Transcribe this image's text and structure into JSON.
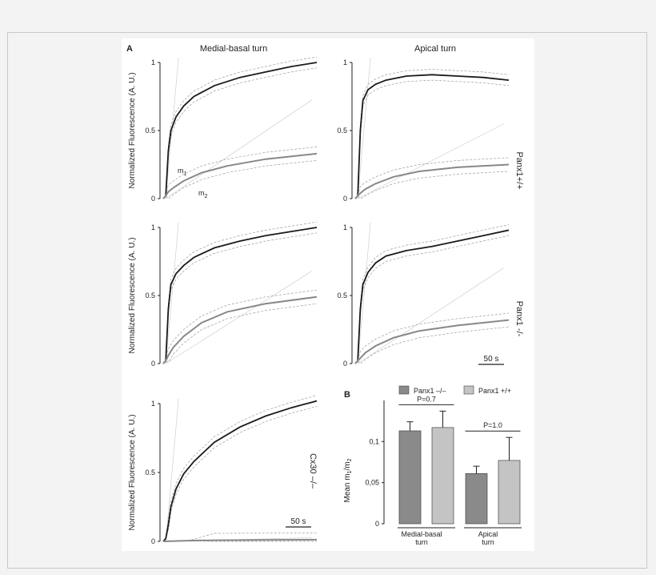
{
  "figure": {
    "panel_a_letter": "A",
    "panel_b_letter": "B",
    "col1_title": "Medial-basal turn",
    "col2_title": "Apical turn",
    "ylabel": "Normalized Fluorescence (A. U.)",
    "m1_label": "m",
    "m1_sub": "1",
    "m2_label": "m",
    "m2_sub": "2",
    "scalebar_label": "50 s",
    "row_labels": [
      "Panx1+/+",
      "Panx1 -/-",
      "Cx30 –/–"
    ]
  },
  "chart_data": [
    {
      "type": "line",
      "panel": "A",
      "title": "Medial-basal turn",
      "row": "Panx1+/+",
      "ylabel": "Normalized Fluorescence (A. U.)",
      "ylim": [
        0,
        1
      ],
      "yticks": [
        "0",
        "0.5",
        "1"
      ],
      "series": [
        {
          "name": "m1",
          "x": [
            0,
            1,
            2,
            3,
            5,
            8,
            12,
            20,
            30,
            40,
            50,
            60
          ],
          "values": [
            0,
            0.02,
            0.35,
            0.5,
            0.6,
            0.68,
            0.75,
            0.83,
            0.89,
            0.93,
            0.97,
            1.0
          ]
        },
        {
          "name": "m2",
          "x": [
            0,
            1,
            2,
            4,
            8,
            15,
            25,
            40,
            60
          ],
          "values": [
            0,
            0.02,
            0.05,
            0.08,
            0.13,
            0.19,
            0.24,
            0.29,
            0.33
          ]
        }
      ]
    },
    {
      "type": "line",
      "panel": "A",
      "title": "Apical turn",
      "row": "Panx1+/+",
      "ylim": [
        0,
        1
      ],
      "yticks": [
        "0",
        "0.5",
        "1"
      ],
      "series": [
        {
          "name": "m1",
          "x": [
            0,
            1,
            2,
            3,
            5,
            8,
            12,
            20,
            30,
            40,
            50,
            60
          ],
          "values": [
            0,
            0.02,
            0.5,
            0.72,
            0.8,
            0.84,
            0.87,
            0.9,
            0.91,
            0.9,
            0.89,
            0.87
          ]
        },
        {
          "name": "m2",
          "x": [
            0,
            1,
            2,
            4,
            8,
            15,
            25,
            40,
            60
          ],
          "values": [
            0,
            0.02,
            0.04,
            0.07,
            0.11,
            0.16,
            0.2,
            0.23,
            0.25
          ]
        }
      ]
    },
    {
      "type": "line",
      "panel": "A",
      "title": "Medial-basal turn",
      "row": "Panx1 -/-",
      "ylim": [
        0,
        1
      ],
      "yticks": [
        "0",
        "0.5",
        "1"
      ],
      "series": [
        {
          "name": "m1",
          "x": [
            0,
            1,
            2,
            3,
            5,
            8,
            12,
            20,
            30,
            40,
            50,
            60
          ],
          "values": [
            0,
            0.02,
            0.4,
            0.58,
            0.66,
            0.72,
            0.78,
            0.85,
            0.9,
            0.94,
            0.97,
            1.0
          ]
        },
        {
          "name": "m2",
          "x": [
            0,
            1,
            2,
            4,
            8,
            15,
            25,
            40,
            60
          ],
          "values": [
            0,
            0.02,
            0.06,
            0.12,
            0.2,
            0.3,
            0.38,
            0.44,
            0.49
          ]
        }
      ]
    },
    {
      "type": "line",
      "panel": "A",
      "title": "Apical turn",
      "row": "Panx1 -/-",
      "ylim": [
        0,
        1
      ],
      "yticks": [
        "0",
        "0.5",
        "1"
      ],
      "series": [
        {
          "name": "m1",
          "x": [
            0,
            1,
            2,
            3,
            5,
            8,
            12,
            20,
            30,
            40,
            50,
            60
          ],
          "values": [
            0,
            0.02,
            0.4,
            0.58,
            0.67,
            0.74,
            0.79,
            0.83,
            0.86,
            0.9,
            0.94,
            0.98
          ]
        },
        {
          "name": "m2",
          "x": [
            0,
            1,
            2,
            4,
            8,
            15,
            25,
            40,
            60
          ],
          "values": [
            0,
            0.02,
            0.04,
            0.08,
            0.13,
            0.19,
            0.24,
            0.28,
            0.32
          ]
        }
      ]
    },
    {
      "type": "line",
      "panel": "A",
      "title": "Medial-basal turn",
      "row": "Cx30 –/–",
      "ylim": [
        0,
        1
      ],
      "yticks": [
        "0",
        "0.5",
        "1"
      ],
      "series": [
        {
          "name": "m1",
          "x": [
            0,
            1,
            2,
            3,
            5,
            8,
            12,
            20,
            30,
            40,
            50,
            60
          ],
          "values": [
            0,
            0.02,
            0.12,
            0.25,
            0.38,
            0.49,
            0.58,
            0.72,
            0.83,
            0.91,
            0.97,
            1.02
          ]
        },
        {
          "name": "m2",
          "x": [
            0,
            10,
            20,
            40,
            60
          ],
          "values": [
            0,
            0.005,
            0.008,
            0.01,
            0.012
          ]
        }
      ]
    },
    {
      "type": "bar",
      "panel": "B",
      "ylabel": "Mean m1/m2",
      "ylim": [
        0,
        0.15
      ],
      "yticks": [
        "0",
        "0,05",
        "0,1"
      ],
      "categories": [
        "Medial-basal turn",
        "Apical turn"
      ],
      "series": [
        {
          "name": "Panx1 –/–",
          "values": [
            0.113,
            0.061
          ],
          "errors": [
            0.011,
            0.009
          ]
        },
        {
          "name": "Panx1 +/+",
          "values": [
            0.117,
            0.077
          ],
          "errors": [
            0.02,
            0.028
          ]
        }
      ],
      "annotations": [
        "P=0.7",
        "P=1.0"
      ]
    }
  ],
  "bar_panel": {
    "legend": [
      "Panx1 –/–",
      "Panx1 +/+"
    ],
    "ylabel_main": "Mean m",
    "ylabel_sub1": "1",
    "ylabel_slash": "/m",
    "ylabel_sub2": "2",
    "yticks": [
      "0",
      "0,05",
      "0,1"
    ],
    "p_values": [
      "P=0.7",
      "P=1.0"
    ],
    "cat1_line1": "Medial-basal",
    "cat1_line2": "turn",
    "cat2_line1": "Apical",
    "cat2_line2": "turn"
  },
  "colors": {
    "dark_trace": "#1a1a1a",
    "gray_trace": "#888888",
    "bar_knockout": "#8a8a8a",
    "bar_wildtype": "#c4c4c4"
  }
}
